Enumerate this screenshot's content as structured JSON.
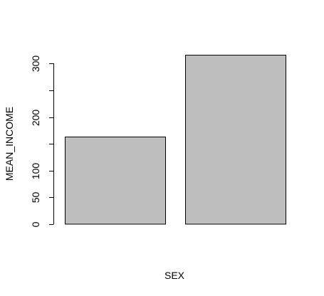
{
  "chart_data": {
    "type": "bar",
    "categories": [
      "",
      ""
    ],
    "values": [
      164,
      316
    ],
    "title": "",
    "xlabel": "SEX",
    "ylabel": "MEAN_INCOME",
    "ylim": [
      0,
      316
    ],
    "yticks": [
      0,
      50,
      100,
      150,
      200,
      250,
      300
    ],
    "ytick_labels": [
      "0",
      "50",
      "100",
      "",
      "200",
      "",
      "300"
    ],
    "grid": false,
    "legend": "none",
    "bar_color": "#bebebe",
    "border_color": "#000000"
  }
}
